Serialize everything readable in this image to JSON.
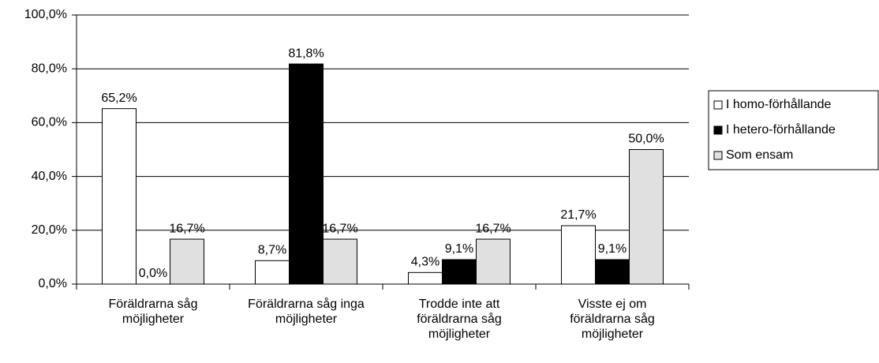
{
  "chart_data": {
    "type": "bar",
    "categories": [
      "Föräldrarna såg möjligheter",
      "Föräldrarna såg inga möjligheter",
      "Trodde inte att föräldrarna såg möjligheter",
      "Visste ej om föräldrarna såg möjligheter"
    ],
    "series": [
      {
        "name": "I homo-förhållande",
        "color": "#ffffff",
        "values": [
          65.2,
          8.7,
          4.3,
          21.7
        ],
        "value_labels": [
          "65,2%",
          "8,7%",
          "4,3%",
          "21,7%"
        ]
      },
      {
        "name": "I hetero-förhållande",
        "color": "#000000",
        "values": [
          0.0,
          81.8,
          9.1,
          9.1
        ],
        "value_labels": [
          "0,0%",
          "81,8%",
          "9,1%",
          "9,1%"
        ]
      },
      {
        "name": "Som ensam",
        "color": "#e0e0e0",
        "values": [
          16.7,
          16.7,
          16.7,
          50.0
        ],
        "value_labels": [
          "16,7%",
          "16,7%",
          "16,7%",
          "50,0%"
        ]
      }
    ],
    "ylim": [
      0,
      100
    ],
    "yticks": [
      {
        "value": 0,
        "label": "0,0%"
      },
      {
        "value": 20,
        "label": "20,0%"
      },
      {
        "value": 40,
        "label": "40,0%"
      },
      {
        "value": 60,
        "label": "60,0%"
      },
      {
        "value": 80,
        "label": "80,0%"
      },
      {
        "value": 100,
        "label": "100,0%"
      }
    ],
    "grid": true,
    "legend": "right"
  }
}
